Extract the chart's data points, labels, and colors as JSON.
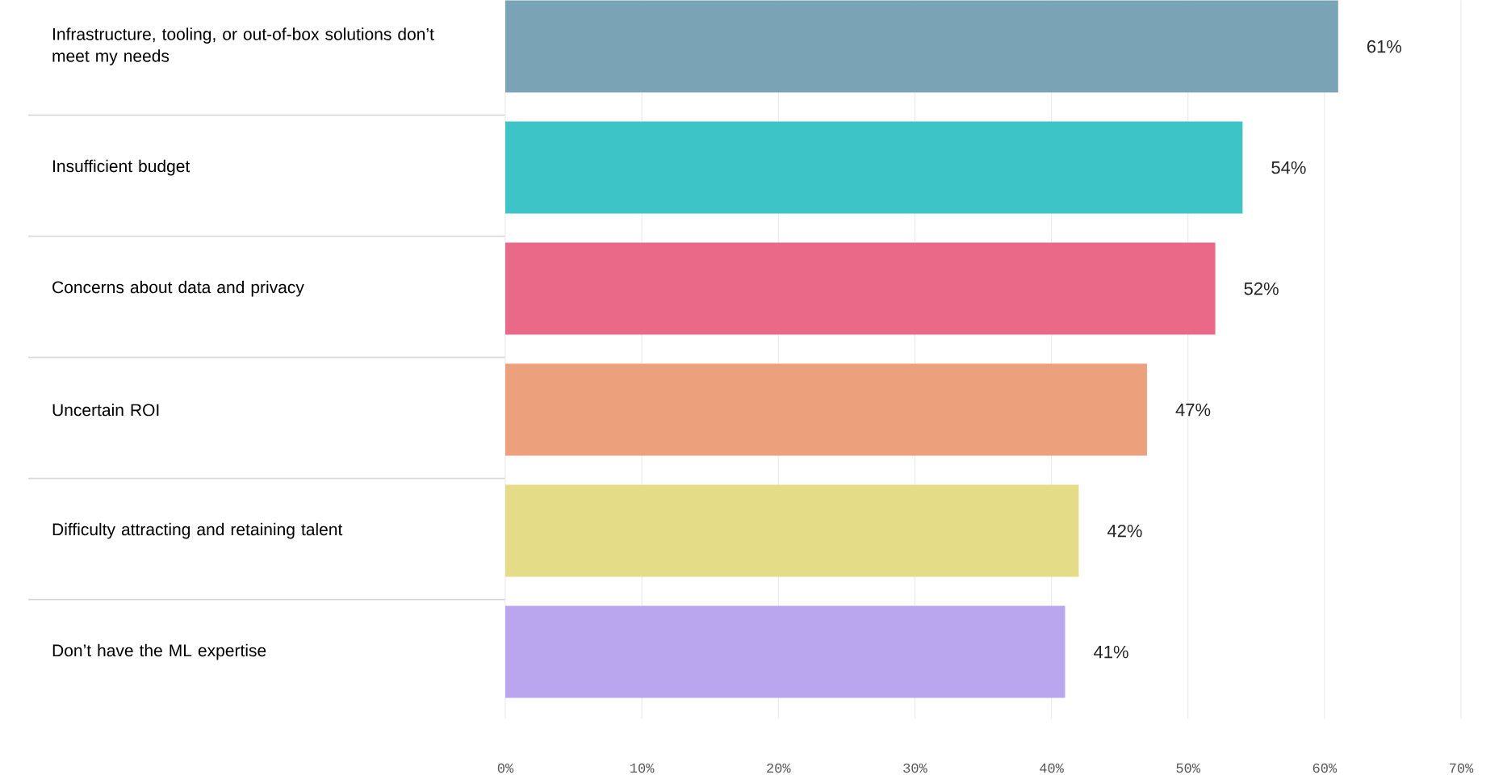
{
  "chart_data": {
    "type": "bar",
    "orientation": "horizontal",
    "categories": [
      "Infrastructure, tooling, or out-of-box solutions don’t meet my needs",
      "Insufficient budget",
      "Concerns about data and privacy",
      "Uncertain ROI",
      "Difficulty attracting and retaining talent",
      "Don’t have the ML expertise"
    ],
    "values": [
      61,
      54,
      52,
      47,
      42,
      41
    ],
    "value_labels": [
      "61%",
      "54%",
      "52%",
      "47%",
      "42%",
      "41%"
    ],
    "colors": [
      "#7aa3b5",
      "#3cc4c6",
      "#ea6888",
      "#eda07c",
      "#e4dc86",
      "#b9a6ee"
    ],
    "xlim": [
      0,
      70
    ],
    "xticks": [
      {
        "value": 0,
        "label": "0%"
      },
      {
        "value": 10,
        "label": "10%"
      },
      {
        "value": 20,
        "label": "20%"
      },
      {
        "value": 30,
        "label": "30%"
      },
      {
        "value": 40,
        "label": "40%"
      },
      {
        "value": 50,
        "label": "50%"
      },
      {
        "value": 60,
        "label": "60%"
      },
      {
        "value": 70,
        "label": "70%"
      }
    ],
    "grid": "x"
  }
}
